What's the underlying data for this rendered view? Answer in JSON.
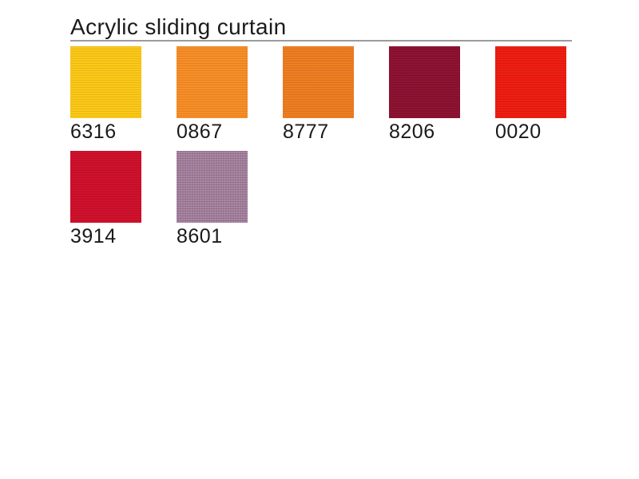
{
  "page": {
    "title": "Acrylic sliding curtain"
  },
  "colors": {
    "background": "#FFFFFF",
    "text": "#1A1A1A",
    "divider": "#9B9B9B"
  },
  "swatches": [
    {
      "code": "6316",
      "color": "#FCC816"
    },
    {
      "code": "0867",
      "color": "#F78D25"
    },
    {
      "code": "8777",
      "color": "#EF7C20"
    },
    {
      "code": "8206",
      "color": "#8C1030"
    },
    {
      "code": "0020",
      "color": "#EE1C0F"
    },
    {
      "code": "3914",
      "color": "#CF0F2A"
    },
    {
      "code": "8601",
      "color": "#A17C9B"
    }
  ]
}
